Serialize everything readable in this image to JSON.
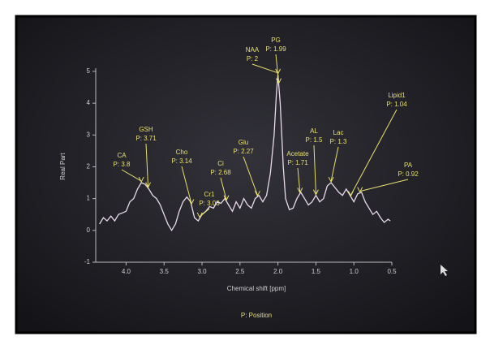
{
  "chart_data": {
    "type": "line",
    "x_label": "Chemical shift [ppm]",
    "y_label": "Real Part",
    "footnote": "P: Position",
    "xlim": [
      4.4,
      0.5
    ],
    "ylim": [
      -1,
      5.1
    ],
    "xticks": [
      {
        "value": 4,
        "label": "4.0"
      },
      3.5,
      {
        "value": 3,
        "label": "3.0"
      },
      2.5,
      {
        "value": 2,
        "label": "2.0"
      },
      1.5,
      {
        "value": 1,
        "label": "1.0"
      },
      0.5
    ],
    "yticks": [
      -1,
      0,
      1,
      2,
      3,
      4,
      5
    ],
    "x": [
      4.35,
      4.3,
      4.25,
      4.2,
      4.15,
      4.1,
      4.05,
      4.0,
      3.95,
      3.9,
      3.85,
      3.8,
      3.75,
      3.7,
      3.65,
      3.6,
      3.55,
      3.5,
      3.45,
      3.4,
      3.35,
      3.3,
      3.25,
      3.2,
      3.15,
      3.1,
      3.05,
      3.0,
      2.95,
      2.9,
      2.85,
      2.8,
      2.75,
      2.7,
      2.65,
      2.6,
      2.55,
      2.5,
      2.45,
      2.4,
      2.35,
      2.3,
      2.25,
      2.2,
      2.15,
      2.1,
      2.05,
      2.02,
      2.0,
      1.97,
      1.93,
      1.9,
      1.85,
      1.8,
      1.75,
      1.7,
      1.65,
      1.6,
      1.55,
      1.5,
      1.45,
      1.4,
      1.35,
      1.3,
      1.25,
      1.2,
      1.15,
      1.1,
      1.05,
      1.0,
      0.95,
      0.9,
      0.85,
      0.8,
      0.75,
      0.7,
      0.65,
      0.6,
      0.55,
      0.52
    ],
    "series": [
      {
        "color": "#e9dbe9",
        "values": [
          0.2,
          0.4,
          0.3,
          0.45,
          0.3,
          0.5,
          0.55,
          0.6,
          0.9,
          1.0,
          1.3,
          1.5,
          1.45,
          1.3,
          1.1,
          1.0,
          0.8,
          0.5,
          0.2,
          0.0,
          0.2,
          0.6,
          0.9,
          1.05,
          0.9,
          0.4,
          0.3,
          0.5,
          0.6,
          0.75,
          0.7,
          0.9,
          0.85,
          1.0,
          0.8,
          0.6,
          0.9,
          0.7,
          1.0,
          0.8,
          0.7,
          1.0,
          1.1,
          0.9,
          1.1,
          1.8,
          3.0,
          4.3,
          4.9,
          4.0,
          2.0,
          1.0,
          0.65,
          0.7,
          1.0,
          1.2,
          1.0,
          0.8,
          0.9,
          1.1,
          0.9,
          1.0,
          1.4,
          1.5,
          1.35,
          1.2,
          1.1,
          1.3,
          1.1,
          0.9,
          1.15,
          1.2,
          0.9,
          0.7,
          0.5,
          0.6,
          0.4,
          0.25,
          0.35,
          0.3
        ]
      }
    ],
    "annotation_color": "#e8e070",
    "annotations": [
      {
        "text": "CA",
        "x": {
          "value": 3.8,
          "label": "P: 3.8"
        }
      },
      {
        "text": "GSH",
        "x": {
          "value": 3.71,
          "label": "P: 3.71"
        }
      },
      {
        "text": "Cho",
        "x": {
          "value": 3.14,
          "label": "P: 3.14"
        }
      },
      {
        "text": "Cr1",
        "x": {
          "value": 3.03,
          "label": "P: 3.03"
        }
      },
      {
        "text": "Ci",
        "x": {
          "value": 2.68,
          "label": "P: 2.68"
        }
      },
      {
        "text": "Glu",
        "x": {
          "value": 2.27,
          "label": "P: 2.27"
        }
      },
      {
        "text": "NAA",
        "x": {
          "value": 2,
          "label": "P: 2"
        }
      },
      {
        "text": "PG",
        "x": {
          "value": 1.99,
          "label": "P: 1.99"
        }
      },
      {
        "text": "Acetate",
        "x": {
          "value": 1.71,
          "label": "P: 1.71"
        }
      },
      {
        "text": "AL",
        "x": {
          "value": 1.5,
          "label": "P: 1.5"
        }
      },
      {
        "text": "Lac",
        "x": {
          "value": 1.3,
          "label": "P: 1.3"
        }
      },
      {
        "text": "Lipid1",
        "x": {
          "value": 1.04,
          "label": "P: 1.04"
        }
      },
      {
        "text": "PA",
        "x": {
          "value": 0.92,
          "label": "P: 0.92"
        }
      }
    ]
  }
}
